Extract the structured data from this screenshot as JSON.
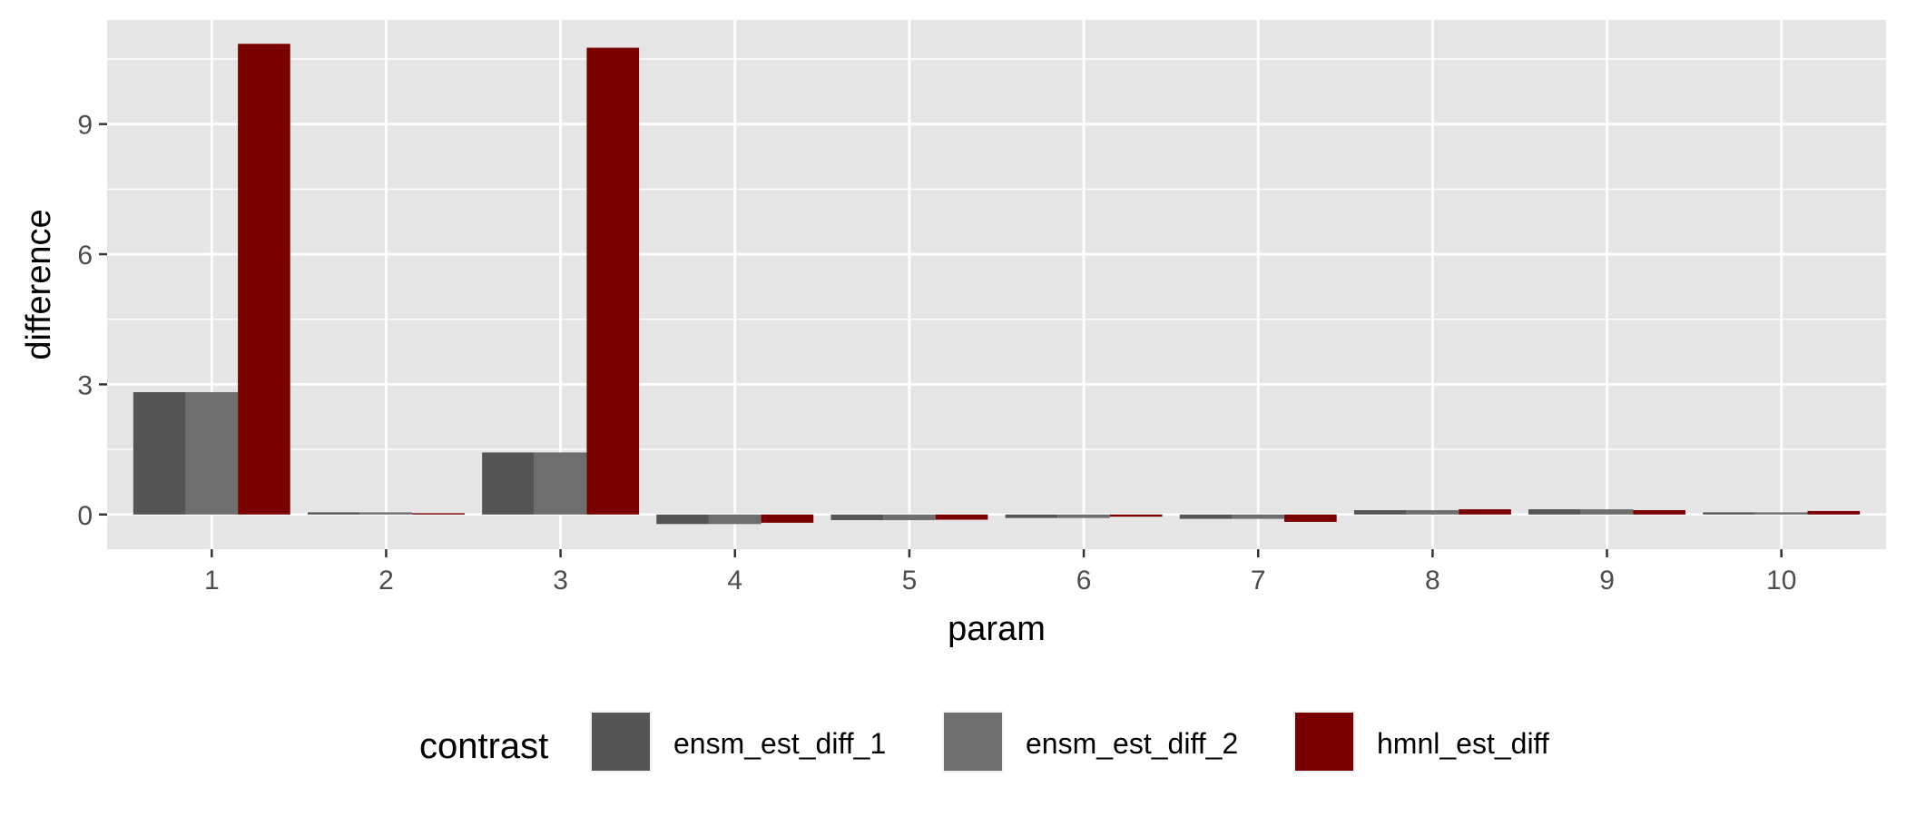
{
  "chart_data": {
    "type": "bar",
    "title": "",
    "xlabel": "param",
    "ylabel": "difference",
    "categories": [
      "1",
      "2",
      "3",
      "4",
      "5",
      "6",
      "7",
      "8",
      "9",
      "10"
    ],
    "yticks": [
      "0",
      "3",
      "6",
      "9"
    ],
    "ylim": [
      -0.8,
      11.4
    ],
    "grid": true,
    "legend": {
      "title": "contrast",
      "placement": "bottom"
    },
    "series": [
      {
        "name": "ensm_est_diff_1",
        "color": "#555555",
        "values": [
          2.82,
          0.05,
          1.43,
          -0.22,
          -0.13,
          -0.08,
          -0.1,
          0.1,
          0.12,
          0.05
        ]
      },
      {
        "name": "ensm_est_diff_2",
        "color": "#6e6e6e",
        "values": [
          2.82,
          0.05,
          1.43,
          -0.22,
          -0.13,
          -0.08,
          -0.1,
          0.1,
          0.12,
          0.05
        ]
      },
      {
        "name": "hmnl_est_diff",
        "color": "#7a0000",
        "values": [
          10.85,
          0.03,
          10.76,
          -0.19,
          -0.12,
          -0.05,
          -0.17,
          0.12,
          0.1,
          0.08
        ]
      }
    ]
  }
}
